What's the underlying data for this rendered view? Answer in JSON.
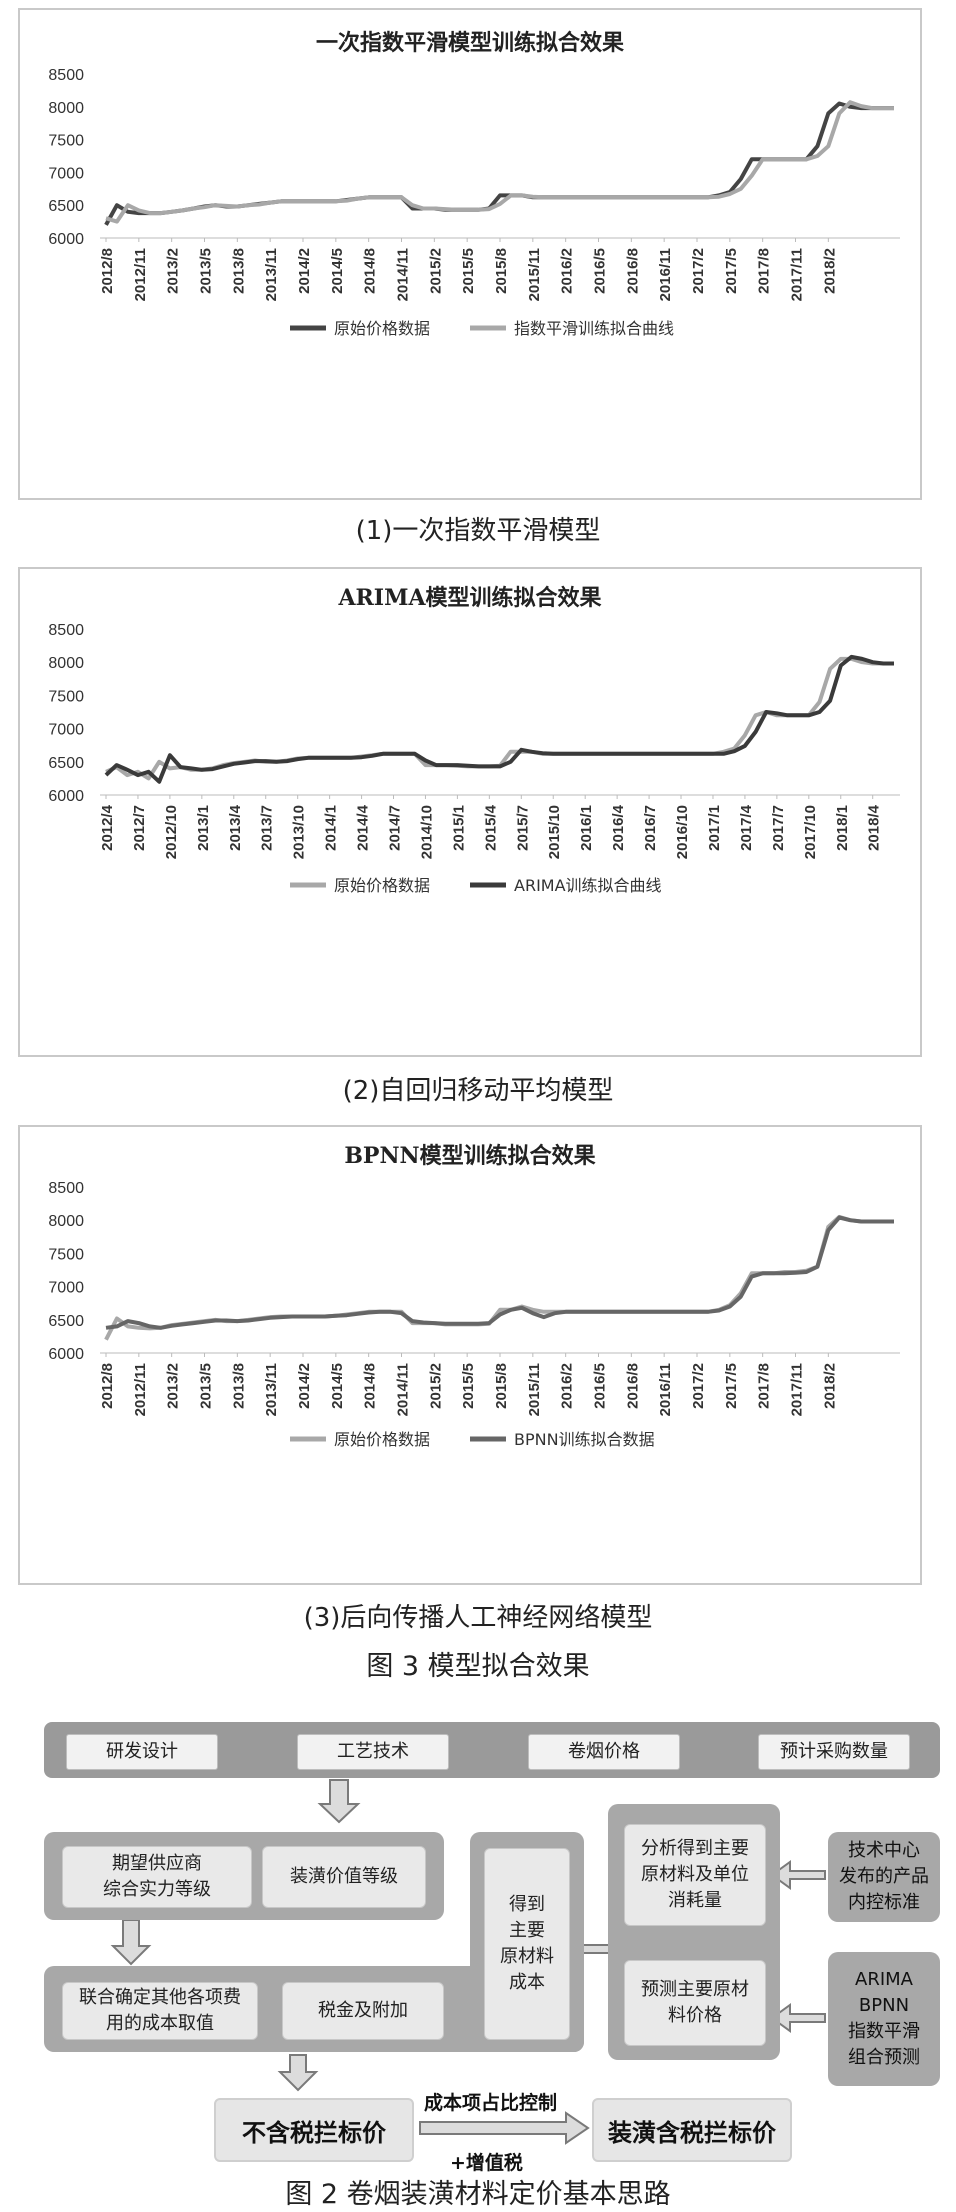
{
  "chart_data": [
    {
      "type": "line",
      "title": "一次指数平滑模型训练拟合效果",
      "x_tick_labels": [
        "2012/8",
        "2012/11",
        "2013/2",
        "2013/5",
        "2013/8",
        "2013/11",
        "2014/2",
        "2014/5",
        "2014/8",
        "2014/11",
        "2015/2",
        "2015/5",
        "2015/8",
        "2015/11",
        "2016/2",
        "2016/5",
        "2016/8",
        "2016/11",
        "2017/2",
        "2017/5",
        "2017/8",
        "2017/11",
        "2018/2"
      ],
      "x_start": "2012/8",
      "ylim": [
        6000,
        8500
      ],
      "y_ticks": [
        6000,
        6500,
        7000,
        7500,
        8000,
        8500
      ],
      "grid": false,
      "legend": "bottom",
      "series": [
        {
          "name": "原始价格数据",
          "color": "#444444",
          "values": [
            6200,
            6500,
            6400,
            6380,
            6380,
            6380,
            6400,
            6420,
            6450,
            6480,
            6500,
            6480,
            6480,
            6500,
            6520,
            6540,
            6560,
            6560,
            6560,
            6560,
            6560,
            6560,
            6580,
            6600,
            6620,
            6620,
            6620,
            6620,
            6450,
            6450,
            6450,
            6430,
            6430,
            6430,
            6430,
            6450,
            6650,
            6650,
            6650,
            6620,
            6620,
            6620,
            6620,
            6620,
            6620,
            6620,
            6620,
            6620,
            6620,
            6620,
            6620,
            6620,
            6620,
            6620,
            6620,
            6620,
            6650,
            6700,
            6900,
            7200,
            7200,
            7200,
            7200,
            7200,
            7200,
            7400,
            7900,
            8050,
            8000,
            7980,
            7980,
            7980,
            7980
          ]
        },
        {
          "name": "指数平滑训练拟合曲线",
          "color": "#a8a8a8",
          "values": [
            6300,
            6250,
            6500,
            6420,
            6380,
            6380,
            6400,
            6420,
            6450,
            6470,
            6500,
            6490,
            6480,
            6500,
            6510,
            6540,
            6560,
            6560,
            6560,
            6560,
            6560,
            6560,
            6570,
            6600,
            6620,
            6620,
            6620,
            6620,
            6500,
            6450,
            6450,
            6440,
            6430,
            6430,
            6430,
            6440,
            6520,
            6650,
            6650,
            6630,
            6620,
            6620,
            6620,
            6620,
            6620,
            6620,
            6620,
            6620,
            6620,
            6620,
            6620,
            6620,
            6620,
            6620,
            6620,
            6620,
            6630,
            6670,
            6750,
            6950,
            7200,
            7200,
            7200,
            7200,
            7200,
            7250,
            7400,
            7900,
            8070,
            8010,
            7980,
            7980,
            7980
          ]
        }
      ]
    },
    {
      "type": "line",
      "title": "ARIMA模型训练拟合效果",
      "x_tick_labels": [
        "2012/4",
        "2012/7",
        "2012/10",
        "2013/1",
        "2013/4",
        "2013/7",
        "2013/10",
        "2014/1",
        "2014/4",
        "2014/7",
        "2014/10",
        "2015/1",
        "2015/4",
        "2015/7",
        "2015/10",
        "2016/1",
        "2016/4",
        "2016/7",
        "2016/10",
        "2017/1",
        "2017/4",
        "2017/7",
        "2017/10",
        "2018/1",
        "2018/4"
      ],
      "x_start": "2012/4",
      "ylim": [
        6000,
        8500
      ],
      "y_ticks": [
        6000,
        6500,
        7000,
        7500,
        8000,
        8500
      ],
      "grid": false,
      "legend": "bottom",
      "series": [
        {
          "name": "原始价格数据",
          "color": "#a8a8a8",
          "values": [
            6350,
            6420,
            6300,
            6350,
            6250,
            6500,
            6400,
            6420,
            6380,
            6380,
            6400,
            6450,
            6480,
            6500,
            6520,
            6500,
            6500,
            6520,
            6550,
            6560,
            6560,
            6560,
            6560,
            6560,
            6580,
            6600,
            6620,
            6620,
            6620,
            6620,
            6450,
            6450,
            6450,
            6440,
            6430,
            6430,
            6430,
            6440,
            6650,
            6650,
            6650,
            6620,
            6620,
            6620,
            6620,
            6620,
            6620,
            6620,
            6620,
            6620,
            6620,
            6620,
            6620,
            6620,
            6620,
            6620,
            6620,
            6620,
            6650,
            6700,
            6900,
            7200,
            7250,
            7200,
            7200,
            7200,
            7200,
            7400,
            7900,
            8050,
            8050,
            8000,
            7980,
            7980,
            7980
          ]
        },
        {
          "name": "ARIMA训练拟合曲线",
          "color": "#3a3a3a",
          "values": [
            6300,
            6450,
            6380,
            6300,
            6350,
            6200,
            6600,
            6420,
            6400,
            6380,
            6390,
            6430,
            6470,
            6490,
            6510,
            6510,
            6500,
            6510,
            6540,
            6560,
            6560,
            6560,
            6560,
            6560,
            6570,
            6590,
            6620,
            6620,
            6620,
            6620,
            6520,
            6450,
            6450,
            6450,
            6440,
            6430,
            6430,
            6430,
            6500,
            6680,
            6650,
            6630,
            6620,
            6620,
            6620,
            6620,
            6620,
            6620,
            6620,
            6620,
            6620,
            6620,
            6620,
            6620,
            6620,
            6620,
            6620,
            6620,
            6620,
            6660,
            6740,
            6950,
            7250,
            7230,
            7200,
            7200,
            7200,
            7250,
            7420,
            7950,
            8080,
            8050,
            8000,
            7980,
            7980
          ]
        }
      ]
    },
    {
      "type": "line",
      "title": "BPNN模型训练拟合效果",
      "x_tick_labels": [
        "2012/8",
        "2012/11",
        "2013/2",
        "2013/5",
        "2013/8",
        "2013/11",
        "2014/2",
        "2014/5",
        "2014/8",
        "2014/11",
        "2015/2",
        "2015/5",
        "2015/8",
        "2015/11",
        "2016/2",
        "2016/5",
        "2016/8",
        "2016/11",
        "2017/2",
        "2017/5",
        "2017/8",
        "2017/11",
        "2018/2"
      ],
      "x_start": "2012/8",
      "ylim": [
        6000,
        8500
      ],
      "y_ticks": [
        6000,
        6500,
        7000,
        7500,
        8000,
        8500
      ],
      "grid": false,
      "legend": "bottom",
      "series": [
        {
          "name": "原始价格数据",
          "color": "#a8a8a8",
          "values": [
            6200,
            6520,
            6400,
            6380,
            6370,
            6380,
            6420,
            6440,
            6460,
            6480,
            6500,
            6480,
            6480,
            6500,
            6520,
            6540,
            6550,
            6550,
            6550,
            6550,
            6550,
            6560,
            6580,
            6600,
            6620,
            6620,
            6620,
            6620,
            6450,
            6450,
            6450,
            6430,
            6430,
            6430,
            6430,
            6440,
            6650,
            6650,
            6700,
            6650,
            6620,
            6620,
            6620,
            6620,
            6620,
            6620,
            6620,
            6620,
            6620,
            6620,
            6620,
            6620,
            6620,
            6620,
            6620,
            6620,
            6650,
            6720,
            6900,
            7200,
            7200,
            7200,
            7220,
            7220,
            7240,
            7300,
            7900,
            8050,
            8000,
            7980,
            7980,
            7980,
            7980
          ]
        },
        {
          "name": "BPNN训练拟合数据",
          "color": "#666666",
          "values": [
            6380,
            6400,
            6480,
            6450,
            6400,
            6380,
            6410,
            6430,
            6450,
            6470,
            6490,
            6490,
            6480,
            6490,
            6510,
            6530,
            6540,
            6550,
            6550,
            6550,
            6550,
            6560,
            6570,
            6590,
            6610,
            6620,
            6620,
            6600,
            6480,
            6460,
            6450,
            6440,
            6440,
            6440,
            6440,
            6450,
            6580,
            6650,
            6680,
            6600,
            6540,
            6600,
            6620,
            6620,
            6620,
            6620,
            6620,
            6620,
            6620,
            6620,
            6620,
            6620,
            6620,
            6620,
            6620,
            6620,
            6640,
            6700,
            6850,
            7150,
            7200,
            7200,
            7200,
            7210,
            7220,
            7300,
            7850,
            8040,
            8000,
            7980,
            7980,
            7980,
            7980
          ]
        }
      ]
    }
  ],
  "captions": {
    "c1": "(1)一次指数平滑模型",
    "c2": "(2)自回归移动平均模型",
    "c3": "(3)后向传播人工神经网络模型",
    "fig3": "图 3   模型拟合效果",
    "fig2": "图 2   卷烟装潢材料定价基本思路"
  },
  "flow": {
    "top_items": [
      "研发设计",
      "工艺技术",
      "卷烟价格",
      "预计采购数量"
    ],
    "expect_supplier": "期望供应商\n综合实力等级",
    "decor_value": "装潢价值等级",
    "other_costs": "联合确定其他各项费\n用的成本取值",
    "tax": "税金及附加",
    "main_cost": "得到\n主要\n原材料\n成本",
    "analyze": "分析得到主要\n原材料及单位\n消耗量",
    "predict": "预测主要原材\n料价格",
    "tech_center": "技术中心\n发布的产品\n内控标准",
    "models": "ARIMA\nBPNN\n指数平滑\n组合预测",
    "no_tax_price": "不含税拦标价",
    "tax_price": "装潢含税拦标价",
    "ratio_control": "成本项占比控制",
    "plus_vat": "+增值税"
  }
}
